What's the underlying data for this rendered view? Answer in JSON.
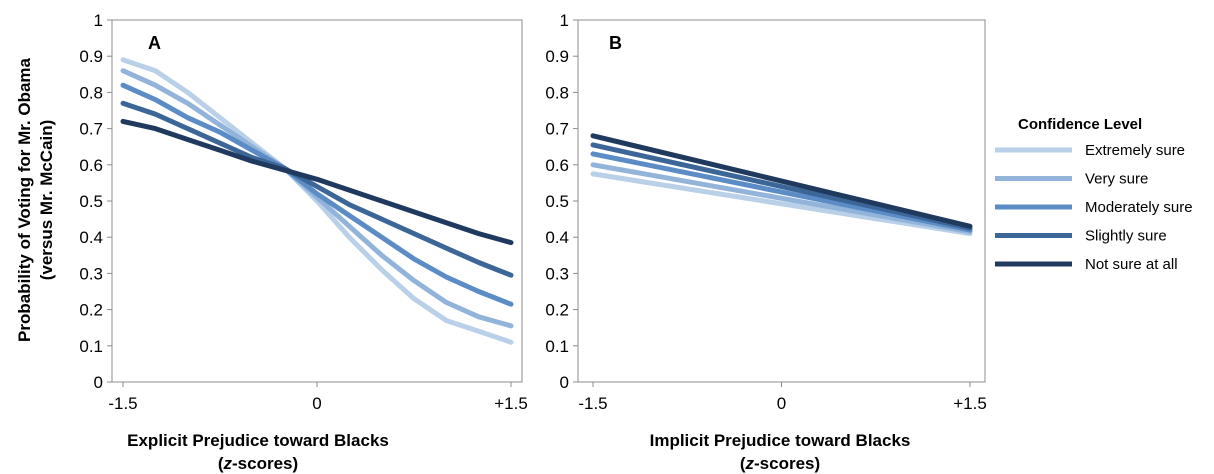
{
  "y_axis_title": {
    "line1": "Probability of Voting for Mr. Obama",
    "line2": "(versus Mr. McCain)"
  },
  "legend": {
    "title": "Confidence Level",
    "entries": [
      "Extremely sure",
      "Very sure",
      "Moderately sure",
      "Slightly sure",
      "Not sure at all"
    ]
  },
  "colors": {
    "Extremely sure": "#b9d0e8",
    "Very sure": "#93b4da",
    "Moderately sure": "#5b8cc6",
    "Slightly sure": "#3c6698",
    "Not sure at all": "#1f3a5e"
  },
  "chart_data": [
    {
      "type": "line",
      "panel_label": "A",
      "xlabel": "Explicit Prejudice toward Blacks",
      "xlabel_sub": "(z-scores)",
      "x_ticks": [
        "-1.5",
        "0",
        "+1.5"
      ],
      "x_tick_values": [
        -1.5,
        0,
        1.5
      ],
      "y_ticks": [
        "0",
        "0.1",
        "0.2",
        "0.3",
        "0.4",
        "0.5",
        "0.6",
        "0.7",
        "0.8",
        "0.9",
        "1"
      ],
      "xlim": [
        -1.5,
        1.5
      ],
      "ylim": [
        0,
        1
      ],
      "grid": false,
      "x": [
        -1.5,
        -1.25,
        -1.0,
        -0.75,
        -0.5,
        -0.25,
        0.0,
        0.25,
        0.5,
        0.75,
        1.0,
        1.25,
        1.5
      ],
      "series": [
        {
          "name": "Extremely sure",
          "values": [
            0.89,
            0.86,
            0.8,
            0.73,
            0.66,
            0.59,
            0.5,
            0.4,
            0.31,
            0.23,
            0.17,
            0.14,
            0.11
          ]
        },
        {
          "name": "Very sure",
          "values": [
            0.86,
            0.82,
            0.77,
            0.71,
            0.65,
            0.59,
            0.51,
            0.43,
            0.35,
            0.28,
            0.22,
            0.18,
            0.155
          ]
        },
        {
          "name": "Moderately sure",
          "values": [
            0.82,
            0.78,
            0.73,
            0.69,
            0.64,
            0.59,
            0.52,
            0.46,
            0.4,
            0.34,
            0.29,
            0.25,
            0.215
          ]
        },
        {
          "name": "Slightly sure",
          "values": [
            0.77,
            0.74,
            0.7,
            0.66,
            0.62,
            0.59,
            0.54,
            0.49,
            0.45,
            0.41,
            0.37,
            0.33,
            0.295
          ]
        },
        {
          "name": "Not sure at all",
          "values": [
            0.72,
            0.7,
            0.67,
            0.64,
            0.61,
            0.585,
            0.56,
            0.53,
            0.5,
            0.47,
            0.44,
            0.41,
            0.385
          ]
        }
      ]
    },
    {
      "type": "line",
      "panel_label": "B",
      "xlabel": "Implicit Prejudice toward Blacks",
      "xlabel_sub": "(z-scores)",
      "x_ticks": [
        "-1.5",
        "0",
        "+1.5"
      ],
      "x_tick_values": [
        -1.5,
        0,
        1.5
      ],
      "y_ticks": [
        "0",
        "0.1",
        "0.2",
        "0.3",
        "0.4",
        "0.5",
        "0.6",
        "0.7",
        "0.8",
        "0.9",
        "1"
      ],
      "xlim": [
        -1.5,
        1.5
      ],
      "ylim": [
        0,
        1
      ],
      "grid": false,
      "x": [
        -1.5,
        1.5
      ],
      "series": [
        {
          "name": "Extremely sure",
          "values": [
            0.575,
            0.41
          ]
        },
        {
          "name": "Very sure",
          "values": [
            0.6,
            0.415
          ]
        },
        {
          "name": "Moderately sure",
          "values": [
            0.63,
            0.42
          ]
        },
        {
          "name": "Slightly sure",
          "values": [
            0.655,
            0.425
          ]
        },
        {
          "name": "Not sure at all",
          "values": [
            0.68,
            0.43
          ]
        }
      ]
    }
  ]
}
